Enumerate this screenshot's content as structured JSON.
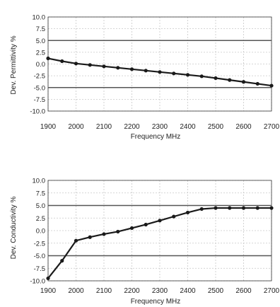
{
  "colors": {
    "line": "#1a1a1a",
    "marker": "#1a1a1a",
    "grid": "#c8c8c8",
    "limit_line": "#555555",
    "frame": "#333333"
  },
  "chart_data": [
    {
      "type": "line",
      "xlabel": "Frequency MHz",
      "ylabel": "Dev. Permittivity %",
      "xlim": [
        1900,
        2700
      ],
      "ylim": [
        -10,
        10
      ],
      "xticks": [
        "1900",
        "2000",
        "2100",
        "2200",
        "2300",
        "2400",
        "2500",
        "2600",
        "2700"
      ],
      "yticks": [
        "10.0",
        "7.5",
        "5.0",
        "2.5",
        "0.0",
        "-2.5",
        "-5.0",
        "-7.5",
        "-10.0"
      ],
      "limit_lines": [
        5,
        -5
      ],
      "grid": true,
      "markers": true,
      "x": [
        1900,
        1950,
        2000,
        2050,
        2100,
        2150,
        2200,
        2250,
        2300,
        2350,
        2400,
        2450,
        2500,
        2550,
        2600,
        2650,
        2700
      ],
      "y": [
        1.2,
        0.6,
        0.1,
        -0.2,
        -0.5,
        -0.8,
        -1.1,
        -1.4,
        -1.7,
        -2.0,
        -2.3,
        -2.6,
        -3.0,
        -3.4,
        -3.8,
        -4.2,
        -4.6
      ]
    },
    {
      "type": "line",
      "xlabel": "Frequency MHz",
      "ylabel": "Dev. Conductivity %",
      "xlim": [
        1900,
        2700
      ],
      "ylim": [
        -10,
        10
      ],
      "xticks": [
        "1900",
        "2000",
        "2100",
        "2200",
        "2300",
        "2400",
        "2500",
        "2600",
        "2700"
      ],
      "yticks": [
        "10.0",
        "7.5",
        "5.0",
        "2.5",
        "0.0",
        "-2.5",
        "-5.0",
        "-7.5",
        "-10.0"
      ],
      "limit_lines": [
        5,
        -5
      ],
      "grid": true,
      "markers": true,
      "x": [
        1900,
        1950,
        2000,
        2050,
        2100,
        2150,
        2200,
        2250,
        2300,
        2350,
        2400,
        2450,
        2500,
        2550,
        2600,
        2650,
        2700
      ],
      "y": [
        -9.5,
        -6.0,
        -2.0,
        -1.3,
        -0.7,
        -0.2,
        0.5,
        1.2,
        2.0,
        2.8,
        3.6,
        4.3,
        4.5,
        4.5,
        4.5,
        4.5,
        4.5
      ]
    }
  ]
}
